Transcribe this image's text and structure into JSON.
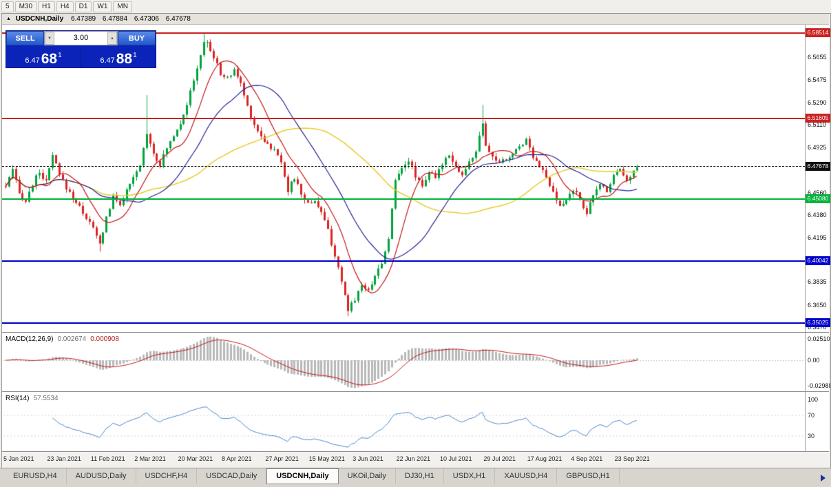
{
  "toolbar": {
    "timeframes": [
      "5",
      "M30",
      "H1",
      "H4",
      "D1",
      "W1",
      "MN"
    ]
  },
  "caption": {
    "collapse_icon": "▲",
    "symbol": "USDCNH,Daily",
    "open": "6.47389",
    "high": "6.47884",
    "low": "6.47306",
    "close": "6.47678"
  },
  "trade_panel": {
    "sell_label": "SELL",
    "buy_label": "BUY",
    "volume": "3.00",
    "spin_down_icon": "▼",
    "spin_up_icon": "▲",
    "sell_price": {
      "small": "6.47",
      "big": "68",
      "sup": "1"
    },
    "buy_price": {
      "small": "6.47",
      "big": "88",
      "sup": "1"
    }
  },
  "price_axis": {
    "ticks": [
      "6.5655",
      "6.5475",
      "6.5290",
      "6.5110",
      "6.4925",
      "6.4560",
      "6.4380",
      "6.4195",
      "6.3835",
      "6.3650",
      "6.3470"
    ]
  },
  "levels": [
    {
      "label": "6.58514",
      "value": 6.58514,
      "color": "#cc2020",
      "style": "solid",
      "role": "resistance"
    },
    {
      "label": "6.51605",
      "value": 6.51605,
      "color": "#cc2020",
      "style": "solid",
      "role": "resistance"
    },
    {
      "label": "6.47678",
      "value": 6.47678,
      "color": "#111111",
      "style": "dashed",
      "role": "current-price"
    },
    {
      "label": "6.45080",
      "value": 6.4508,
      "color": "#00b43c",
      "style": "solid",
      "role": "support"
    },
    {
      "label": "6.40042",
      "value": 6.40042,
      "color": "#0000cc",
      "style": "solid",
      "role": "support"
    },
    {
      "label": "6.35025",
      "value": 6.35025,
      "color": "#0000cc",
      "style": "solid",
      "role": "support"
    }
  ],
  "macd_panel": {
    "title": "MACD(12,26,9)",
    "value1": "0.002674",
    "value2": "0.000908",
    "axis": [
      "0.02510",
      "0.00",
      "-0.02988"
    ]
  },
  "rsi_panel": {
    "title": "RSI(14)",
    "value": "57.5534",
    "axis": [
      "100",
      "70",
      "30"
    ]
  },
  "time_axis": {
    "labels": [
      "5 Jan 2021",
      "23 Jan 2021",
      "11 Feb 2021",
      "2 Mar 2021",
      "20 Mar 2021",
      "8 Apr 2021",
      "27 Apr 2021",
      "15 May 2021",
      "3 Jun 2021",
      "22 Jun 2021",
      "10 Jul 2021",
      "29 Jul 2021",
      "17 Aug 2021",
      "4 Sep 2021",
      "23 Sep 2021"
    ]
  },
  "tabs": {
    "items": [
      "EURUSD,H4",
      "AUDUSD,Daily",
      "USDCHF,H4",
      "USDCAD,Daily",
      "USDCNH,Daily",
      "UKOil,Daily",
      "DJ30,H1",
      "USDX,H1",
      "XAUUSD,H4",
      "GBPUSD,H1"
    ],
    "active": "USDCNH,Daily"
  },
  "chart_data": {
    "type": "candlestick",
    "symbol": "USDCNH",
    "timeframe": "Daily",
    "bars": 189,
    "x_range": {
      "start": "5 Jan 2021",
      "end": "23 Sep 2021"
    },
    "y_range": [
      6.344,
      6.592
    ],
    "last": {
      "open": 6.47389,
      "high": 6.47884,
      "low": 6.47306,
      "close": 6.47678
    },
    "price_path_anchors": [
      [
        0,
        6.461
      ],
      [
        2,
        6.474
      ],
      [
        4,
        6.455
      ],
      [
        6,
        6.449
      ],
      [
        8,
        6.463
      ],
      [
        10,
        6.473
      ],
      [
        12,
        6.464
      ],
      [
        14,
        6.486
      ],
      [
        16,
        6.47
      ],
      [
        18,
        6.46
      ],
      [
        20,
        6.452
      ],
      [
        23,
        6.44
      ],
      [
        26,
        6.427
      ],
      [
        28,
        6.414
      ],
      [
        30,
        6.436
      ],
      [
        32,
        6.452
      ],
      [
        34,
        6.447
      ],
      [
        36,
        6.457
      ],
      [
        38,
        6.467
      ],
      [
        40,
        6.478
      ],
      [
        42,
        6.505
      ],
      [
        44,
        6.488
      ],
      [
        46,
        6.479
      ],
      [
        48,
        6.492
      ],
      [
        50,
        6.503
      ],
      [
        52,
        6.513
      ],
      [
        54,
        6.528
      ],
      [
        56,
        6.546
      ],
      [
        58,
        6.568
      ],
      [
        60,
        6.578
      ],
      [
        62,
        6.565
      ],
      [
        64,
        6.553
      ],
      [
        66,
        6.548
      ],
      [
        68,
        6.556
      ],
      [
        70,
        6.544
      ],
      [
        72,
        6.526
      ],
      [
        74,
        6.511
      ],
      [
        76,
        6.502
      ],
      [
        78,
        6.495
      ],
      [
        80,
        6.49
      ],
      [
        82,
        6.482
      ],
      [
        84,
        6.458
      ],
      [
        86,
        6.468
      ],
      [
        88,
        6.455
      ],
      [
        90,
        6.447
      ],
      [
        92,
        6.45
      ],
      [
        94,
        6.44
      ],
      [
        96,
        6.425
      ],
      [
        98,
        6.405
      ],
      [
        100,
        6.382
      ],
      [
        102,
        6.362
      ],
      [
        104,
        6.37
      ],
      [
        106,
        6.382
      ],
      [
        108,
        6.376
      ],
      [
        110,
        6.39
      ],
      [
        112,
        6.398
      ],
      [
        114,
        6.42
      ],
      [
        116,
        6.465
      ],
      [
        118,
        6.478
      ],
      [
        120,
        6.482
      ],
      [
        122,
        6.47
      ],
      [
        124,
        6.462
      ],
      [
        126,
        6.473
      ],
      [
        128,
        6.467
      ],
      [
        130,
        6.48
      ],
      [
        132,
        6.488
      ],
      [
        134,
        6.477
      ],
      [
        136,
        6.47
      ],
      [
        138,
        6.48
      ],
      [
        140,
        6.49
      ],
      [
        142,
        6.512
      ],
      [
        143,
        6.492
      ],
      [
        145,
        6.485
      ],
      [
        147,
        6.48
      ],
      [
        149,
        6.483
      ],
      [
        151,
        6.487
      ],
      [
        153,
        6.494
      ],
      [
        155,
        6.499
      ],
      [
        157,
        6.486
      ],
      [
        159,
        6.478
      ],
      [
        161,
        6.468
      ],
      [
        163,
        6.455
      ],
      [
        165,
        6.444
      ],
      [
        167,
        6.45
      ],
      [
        169,
        6.459
      ],
      [
        171,
        6.45
      ],
      [
        173,
        6.44
      ],
      [
        175,
        6.453
      ],
      [
        177,
        6.463
      ],
      [
        179,
        6.458
      ],
      [
        181,
        6.47
      ],
      [
        183,
        6.477
      ],
      [
        185,
        6.466
      ],
      [
        187,
        6.47
      ],
      [
        188,
        6.477
      ]
    ],
    "key_extremes": {
      "high": [
        59,
        6.5851
      ],
      "low": [
        102,
        6.3558
      ],
      "july_spike_high": [
        142,
        6.527
      ],
      "feb_low": [
        28,
        6.4082
      ],
      "mar_spike_high": [
        42,
        6.535
      ]
    },
    "moving_averages": [
      {
        "name": "fast",
        "color": "#c41414",
        "period": 10
      },
      {
        "name": "mid",
        "color": "#22229a",
        "period": 25
      },
      {
        "name": "slow",
        "color": "#e6cc2e",
        "period": 55
      }
    ],
    "horizontal_levels": [
      6.58514,
      6.51605,
      6.4508,
      6.40042,
      6.35025
    ],
    "indicators": [
      {
        "name": "MACD",
        "params": [
          12,
          26,
          9
        ],
        "current": [
          0.002674,
          0.000908
        ],
        "axis_range": [
          -0.02988,
          0.0251
        ]
      },
      {
        "name": "RSI",
        "params": [
          14
        ],
        "current": 57.5534,
        "levels": [
          30,
          70
        ],
        "axis_range": [
          0,
          100
        ]
      }
    ],
    "colors": {
      "up": "#00a33c",
      "down": "#dd2222",
      "macd_hist": "#b8b8b8",
      "macd_signal": "#c41414",
      "rsi_line": "#4a86c8",
      "background": "#ffffff"
    }
  }
}
